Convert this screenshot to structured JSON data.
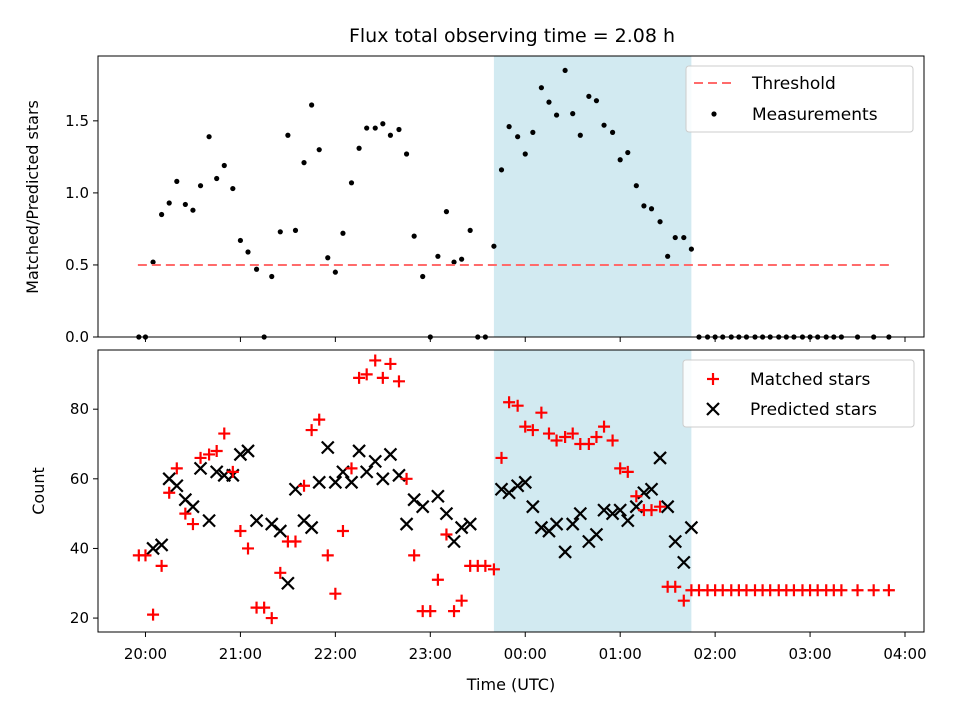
{
  "chart_data": {
    "type": "scatter",
    "title": "Flux total observing time = 2.08 h",
    "xlabel": "Time (UTC)",
    "x_unit": "hours after 20:00",
    "x_range": [
      -0.5,
      8.2
    ],
    "x_ticks": [
      {
        "h": 0,
        "label": "20:00"
      },
      {
        "h": 1,
        "label": "21:00"
      },
      {
        "h": 2,
        "label": "22:00"
      },
      {
        "h": 3,
        "label": "23:00"
      },
      {
        "h": 4,
        "label": "00:00"
      },
      {
        "h": 5,
        "label": "01:00"
      },
      {
        "h": 6,
        "label": "02:00"
      },
      {
        "h": 7,
        "label": "03:00"
      },
      {
        "h": 8,
        "label": "04:00"
      }
    ],
    "shaded_interval": {
      "start": 3.67,
      "end": 5.75,
      "color": "#add8e6"
    },
    "panels": [
      {
        "id": "ratio",
        "ylabel": "Matched/Predicted stars",
        "ylim": [
          0,
          1.95
        ],
        "yticks": [
          0.0,
          0.5,
          1.0,
          1.5
        ],
        "ytick_labels": [
          "0.0",
          "0.5",
          "1.0",
          "1.5"
        ],
        "legend": [
          {
            "label": "Threshold",
            "marker": "dashed-line",
            "color": "#ff6b6b"
          },
          {
            "label": "Measurements",
            "marker": "dot",
            "color": "#000000"
          }
        ],
        "threshold": {
          "value": 0.5,
          "x_start": -0.08,
          "x_end": 7.83,
          "color": "#ff6b6b"
        },
        "measurements": [
          [
            -0.07,
            0
          ],
          [
            0.0,
            0
          ],
          [
            0.08,
            0.52
          ],
          [
            0.17,
            0.85
          ],
          [
            0.25,
            0.93
          ],
          [
            0.33,
            1.08
          ],
          [
            0.42,
            0.92
          ],
          [
            0.5,
            0.88
          ],
          [
            0.58,
            1.05
          ],
          [
            0.67,
            1.39
          ],
          [
            0.75,
            1.1
          ],
          [
            0.83,
            1.19
          ],
          [
            0.92,
            1.03
          ],
          [
            1.0,
            0.67
          ],
          [
            1.08,
            0.59
          ],
          [
            1.17,
            0.47
          ],
          [
            1.25,
            0
          ],
          [
            1.33,
            0.42
          ],
          [
            1.42,
            0.73
          ],
          [
            1.5,
            1.4
          ],
          [
            1.58,
            0.74
          ],
          [
            1.67,
            1.21
          ],
          [
            1.75,
            1.61
          ],
          [
            1.83,
            1.3
          ],
          [
            1.92,
            0.55
          ],
          [
            2.0,
            0.45
          ],
          [
            2.08,
            0.72
          ],
          [
            2.17,
            1.07
          ],
          [
            2.25,
            1.31
          ],
          [
            2.33,
            1.45
          ],
          [
            2.42,
            1.45
          ],
          [
            2.5,
            1.48
          ],
          [
            2.58,
            1.4
          ],
          [
            2.67,
            1.44
          ],
          [
            2.75,
            1.27
          ],
          [
            2.83,
            0.7
          ],
          [
            2.92,
            0.42
          ],
          [
            3.0,
            0
          ],
          [
            3.08,
            0.56
          ],
          [
            3.17,
            0.87
          ],
          [
            3.25,
            0.52
          ],
          [
            3.33,
            0.54
          ],
          [
            3.42,
            0.74
          ],
          [
            3.5,
            0
          ],
          [
            3.58,
            0
          ],
          [
            3.67,
            0.63
          ],
          [
            3.75,
            1.16
          ],
          [
            3.83,
            1.46
          ],
          [
            3.92,
            1.39
          ],
          [
            4.0,
            1.27
          ],
          [
            4.08,
            1.42
          ],
          [
            4.17,
            1.73
          ],
          [
            4.25,
            1.63
          ],
          [
            4.33,
            1.54
          ],
          [
            4.42,
            1.85
          ],
          [
            4.5,
            1.55
          ],
          [
            4.58,
            1.4
          ],
          [
            4.67,
            1.67
          ],
          [
            4.75,
            1.64
          ],
          [
            4.83,
            1.47
          ],
          [
            4.92,
            1.42
          ],
          [
            5.0,
            1.23
          ],
          [
            5.08,
            1.28
          ],
          [
            5.17,
            1.05
          ],
          [
            5.25,
            0.91
          ],
          [
            5.33,
            0.89
          ],
          [
            5.42,
            0.8
          ],
          [
            5.5,
            0.56
          ],
          [
            5.58,
            0.69
          ],
          [
            5.67,
            0.69
          ],
          [
            5.75,
            0.61
          ],
          [
            5.83,
            0
          ],
          [
            5.92,
            0
          ],
          [
            6.0,
            0
          ],
          [
            6.08,
            0
          ],
          [
            6.17,
            0
          ],
          [
            6.25,
            0
          ],
          [
            6.33,
            0
          ],
          [
            6.42,
            0
          ],
          [
            6.5,
            0
          ],
          [
            6.58,
            0
          ],
          [
            6.67,
            0
          ],
          [
            6.75,
            0
          ],
          [
            6.83,
            0
          ],
          [
            6.92,
            0
          ],
          [
            7.0,
            0
          ],
          [
            7.08,
            0
          ],
          [
            7.17,
            0
          ],
          [
            7.25,
            0
          ],
          [
            7.33,
            0
          ],
          [
            7.5,
            0
          ],
          [
            7.67,
            0
          ],
          [
            7.83,
            0
          ]
        ]
      },
      {
        "id": "count",
        "ylabel": "Count",
        "ylim": [
          16,
          97
        ],
        "yticks": [
          20,
          40,
          60,
          80
        ],
        "ytick_labels": [
          "20",
          "40",
          "60",
          "80"
        ],
        "legend": [
          {
            "label": "Matched stars",
            "marker": "plus",
            "color": "#ff0000"
          },
          {
            "label": "Predicted stars",
            "marker": "x",
            "color": "#000000"
          }
        ],
        "matched": [
          [
            -0.07,
            38
          ],
          [
            0.0,
            38
          ],
          [
            0.08,
            21
          ],
          [
            0.17,
            35
          ],
          [
            0.25,
            56
          ],
          [
            0.33,
            63
          ],
          [
            0.42,
            50
          ],
          [
            0.5,
            47
          ],
          [
            0.58,
            66
          ],
          [
            0.67,
            67
          ],
          [
            0.75,
            68
          ],
          [
            0.83,
            73
          ],
          [
            0.92,
            62
          ],
          [
            1.0,
            45
          ],
          [
            1.08,
            40
          ],
          [
            1.17,
            23
          ],
          [
            1.25,
            23
          ],
          [
            1.33,
            20
          ],
          [
            1.42,
            33
          ],
          [
            1.5,
            42
          ],
          [
            1.58,
            42
          ],
          [
            1.67,
            58
          ],
          [
            1.75,
            74
          ],
          [
            1.83,
            77
          ],
          [
            1.92,
            38
          ],
          [
            2.0,
            27
          ],
          [
            2.08,
            45
          ],
          [
            2.17,
            63
          ],
          [
            2.25,
            89
          ],
          [
            2.33,
            90
          ],
          [
            2.42,
            94
          ],
          [
            2.5,
            89
          ],
          [
            2.58,
            93
          ],
          [
            2.67,
            88
          ],
          [
            2.75,
            60
          ],
          [
            2.83,
            38
          ],
          [
            2.92,
            22
          ],
          [
            3.0,
            22
          ],
          [
            3.08,
            31
          ],
          [
            3.17,
            44
          ],
          [
            3.25,
            22
          ],
          [
            3.33,
            25
          ],
          [
            3.42,
            35
          ],
          [
            3.5,
            35
          ],
          [
            3.58,
            35
          ],
          [
            3.67,
            34
          ],
          [
            3.75,
            66
          ],
          [
            3.83,
            82
          ],
          [
            3.92,
            81
          ],
          [
            4.0,
            75
          ],
          [
            4.08,
            74
          ],
          [
            4.17,
            79
          ],
          [
            4.25,
            73
          ],
          [
            4.33,
            71
          ],
          [
            4.42,
            72
          ],
          [
            4.5,
            73
          ],
          [
            4.58,
            70
          ],
          [
            4.67,
            70
          ],
          [
            4.75,
            72
          ],
          [
            4.83,
            75
          ],
          [
            4.92,
            71
          ],
          [
            5.0,
            63
          ],
          [
            5.08,
            62
          ],
          [
            5.17,
            55
          ],
          [
            5.25,
            51
          ],
          [
            5.33,
            51
          ],
          [
            5.42,
            52
          ],
          [
            5.5,
            29
          ],
          [
            5.58,
            29
          ],
          [
            5.67,
            25
          ],
          [
            5.75,
            28
          ],
          [
            5.83,
            28
          ],
          [
            5.92,
            28
          ],
          [
            6.0,
            28
          ],
          [
            6.08,
            28
          ],
          [
            6.17,
            28
          ],
          [
            6.25,
            28
          ],
          [
            6.33,
            28
          ],
          [
            6.42,
            28
          ],
          [
            6.5,
            28
          ],
          [
            6.58,
            28
          ],
          [
            6.67,
            28
          ],
          [
            6.75,
            28
          ],
          [
            6.83,
            28
          ],
          [
            6.92,
            28
          ],
          [
            7.0,
            28
          ],
          [
            7.08,
            28
          ],
          [
            7.17,
            28
          ],
          [
            7.25,
            28
          ],
          [
            7.33,
            28
          ],
          [
            7.5,
            28
          ],
          [
            7.67,
            28
          ],
          [
            7.83,
            28
          ]
        ],
        "predicted": [
          [
            0.08,
            40
          ],
          [
            0.17,
            41
          ],
          [
            0.25,
            60
          ],
          [
            0.33,
            58
          ],
          [
            0.42,
            54
          ],
          [
            0.5,
            52
          ],
          [
            0.58,
            63
          ],
          [
            0.67,
            48
          ],
          [
            0.75,
            62
          ],
          [
            0.83,
            61
          ],
          [
            0.92,
            61
          ],
          [
            1.0,
            67
          ],
          [
            1.08,
            68
          ],
          [
            1.17,
            48
          ],
          [
            1.33,
            47
          ],
          [
            1.42,
            45
          ],
          [
            1.5,
            30
          ],
          [
            1.58,
            57
          ],
          [
            1.67,
            48
          ],
          [
            1.75,
            46
          ],
          [
            1.83,
            59
          ],
          [
            1.92,
            69
          ],
          [
            2.0,
            59
          ],
          [
            2.08,
            62
          ],
          [
            2.17,
            59
          ],
          [
            2.25,
            68
          ],
          [
            2.33,
            62
          ],
          [
            2.42,
            65
          ],
          [
            2.5,
            60
          ],
          [
            2.58,
            67
          ],
          [
            2.67,
            61
          ],
          [
            2.75,
            47
          ],
          [
            2.83,
            54
          ],
          [
            2.92,
            52
          ],
          [
            3.08,
            55
          ],
          [
            3.17,
            50
          ],
          [
            3.25,
            42
          ],
          [
            3.33,
            46
          ],
          [
            3.42,
            47
          ],
          [
            3.75,
            57
          ],
          [
            3.83,
            56
          ],
          [
            3.92,
            58
          ],
          [
            4.0,
            59
          ],
          [
            4.08,
            52
          ],
          [
            4.17,
            46
          ],
          [
            4.25,
            45
          ],
          [
            4.33,
            47
          ],
          [
            4.42,
            39
          ],
          [
            4.5,
            47
          ],
          [
            4.58,
            50
          ],
          [
            4.67,
            42
          ],
          [
            4.75,
            44
          ],
          [
            4.83,
            51
          ],
          [
            4.92,
            50
          ],
          [
            5.0,
            51
          ],
          [
            5.08,
            48
          ],
          [
            5.17,
            52
          ],
          [
            5.25,
            56
          ],
          [
            5.33,
            57
          ],
          [
            5.42,
            66
          ],
          [
            5.5,
            52
          ],
          [
            5.58,
            42
          ],
          [
            5.67,
            36
          ],
          [
            5.75,
            46
          ]
        ]
      }
    ]
  }
}
